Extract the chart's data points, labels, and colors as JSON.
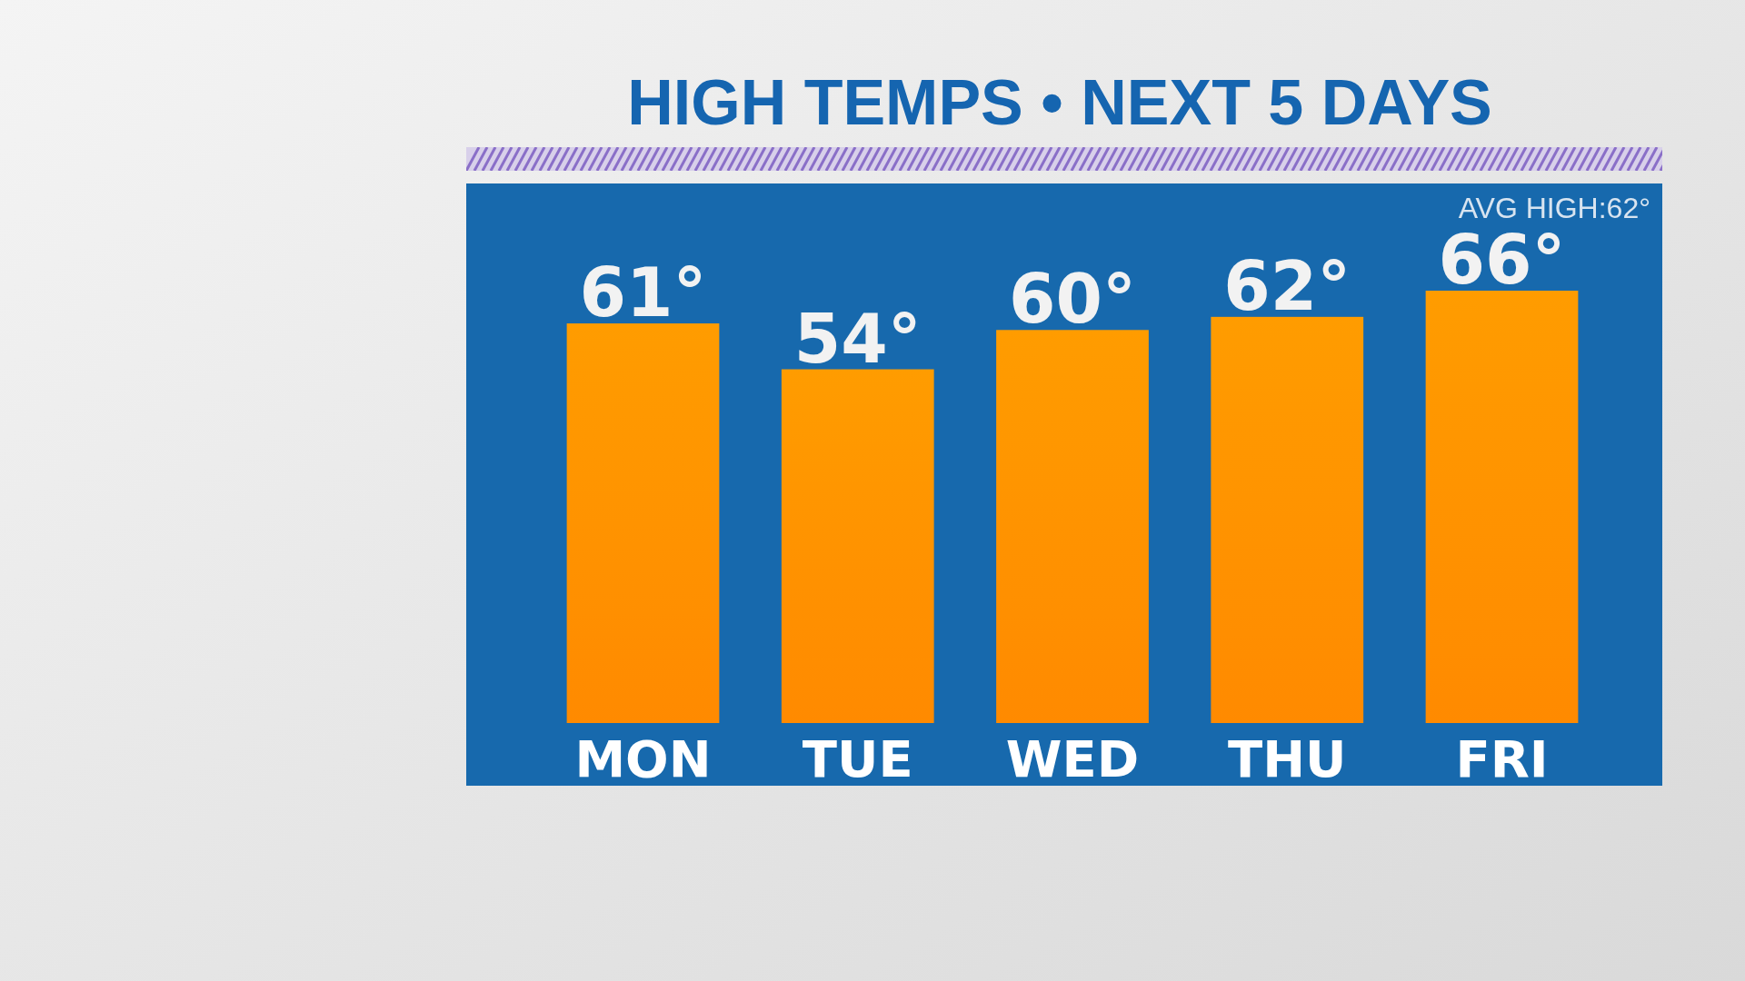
{
  "chart_data": {
    "type": "bar",
    "title": "HIGH TEMPS • NEXT 5 DAYS",
    "categories": [
      "MON",
      "TUE",
      "WED",
      "THU",
      "FRI"
    ],
    "values": [
      61,
      54,
      60,
      62,
      66
    ],
    "value_labels": [
      "61°",
      "54°",
      "60°",
      "62°",
      "66°"
    ],
    "color": "#ff8a00",
    "tick_labels": "x",
    "annotations": [
      "AVG HIGH:62°"
    ]
  }
}
